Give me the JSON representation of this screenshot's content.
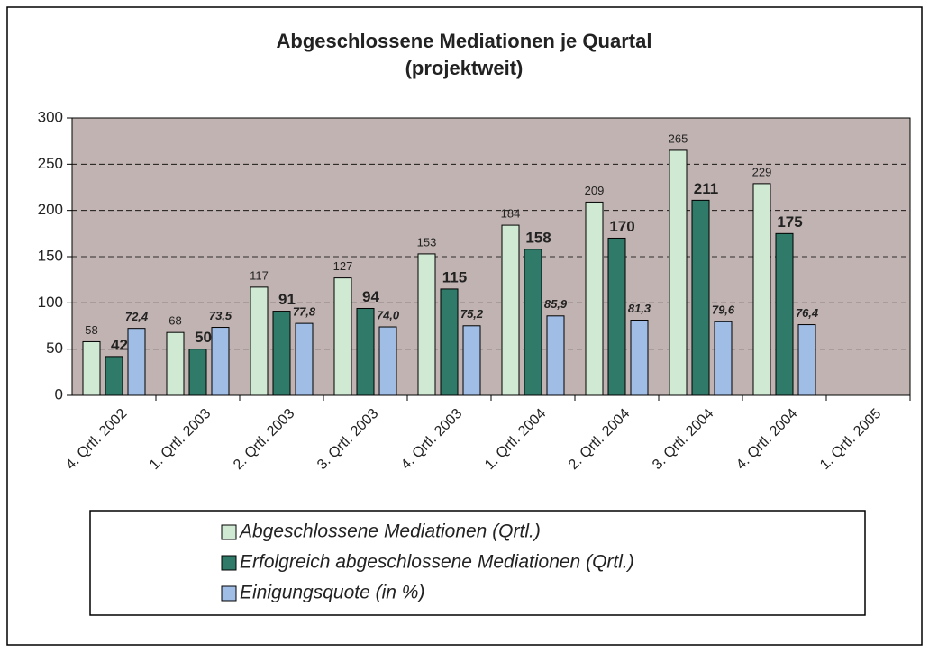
{
  "chart_data": {
    "type": "bar",
    "title": "Abgeschlossene Mediationen je Quartal",
    "subtitle": "(projektweit)",
    "categories": [
      "4. Qrtl. 2002",
      "1. Qrtl. 2003",
      "2. Qrtl. 2003",
      "3. Qrtl. 2003",
      "4. Qrtl. 2003",
      "1. Qrtl. 2004",
      "2. Qrtl. 2004",
      "3. Qrtl. 2004",
      "4. Qrtl. 2004",
      "1. Qrtl. 2005"
    ],
    "series": [
      {
        "name": "Abgeschlossene Mediationen (Qrtl.)",
        "color": "#cfe9d2",
        "values": [
          58,
          68,
          117,
          127,
          153,
          184,
          209,
          265,
          229,
          null
        ]
      },
      {
        "name": "Erfolgreich abgeschlossene Mediationen (Qrtl.)",
        "color": "#2f7a68",
        "values": [
          42,
          50,
          91,
          94,
          115,
          158,
          170,
          211,
          175,
          null
        ]
      },
      {
        "name": "Einigungsquote (in %)",
        "color": "#a0bde6",
        "values": [
          72.4,
          73.5,
          77.8,
          74.0,
          75.2,
          85.9,
          81.3,
          79.6,
          76.4,
          null
        ],
        "value_labels": [
          "72,4",
          "73,5",
          "77,8",
          "74,0",
          "75,2",
          "85,9",
          "81,3",
          "79,6",
          "76,4",
          null
        ]
      }
    ],
    "ylim": [
      0,
      300
    ],
    "yticks": [
      0,
      50,
      100,
      150,
      200,
      250,
      300
    ],
    "grid": true,
    "plot_background": "#c0b3b1"
  }
}
